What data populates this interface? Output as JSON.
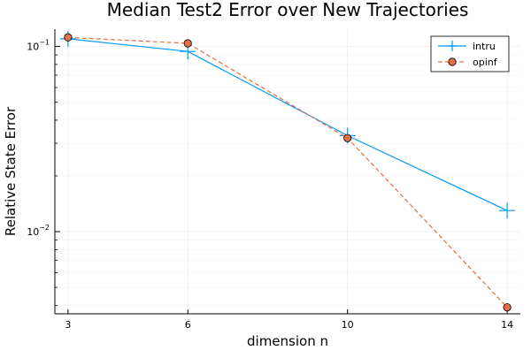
{
  "chart_data": {
    "type": "line",
    "title": "Median Test2 Error over New Trajectories",
    "xlabel": "dimension n",
    "ylabel": "Relative State Error",
    "xlim": [
      2.67,
      14.33
    ],
    "ylim": [
      0.0036,
      0.124
    ],
    "y_scale": "log",
    "grid": true,
    "legend_position": "top-right",
    "x": [
      3,
      6,
      10,
      14
    ],
    "x_ticks": [
      3,
      6,
      10,
      14
    ],
    "y_ticks": [
      {
        "value": 0.1,
        "mantissa": "10",
        "exponent": "−1"
      },
      {
        "value": 0.01,
        "mantissa": "10",
        "exponent": "−2"
      }
    ],
    "series": [
      {
        "name": "intru",
        "values": [
          0.11,
          0.094,
          0.033,
          0.013
        ],
        "color": "#009AFA",
        "marker": "cross",
        "line_style": "solid"
      },
      {
        "name": "opinf",
        "values": [
          0.112,
          0.104,
          0.032,
          0.0039
        ],
        "color": "#E26F46",
        "marker": "circle",
        "line_style": "dashed"
      }
    ]
  }
}
